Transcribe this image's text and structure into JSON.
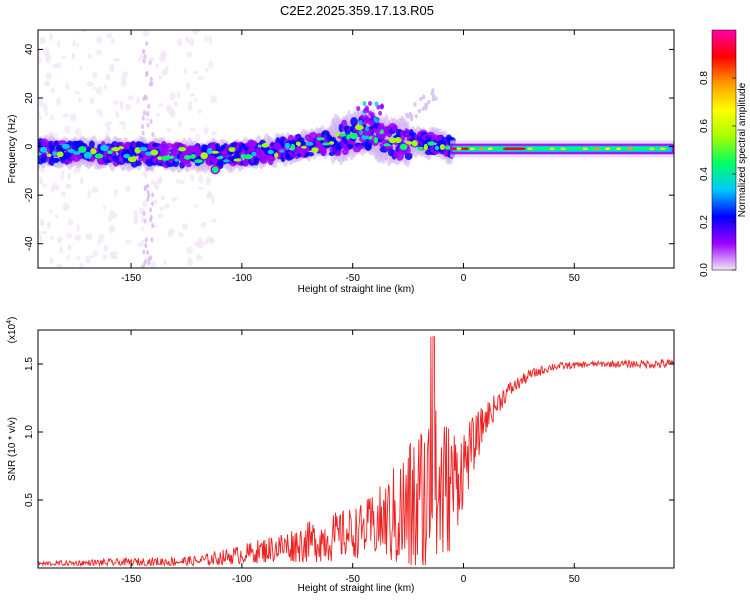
{
  "title": "C2E2.2025.359.17.13.R05",
  "chart_data": [
    {
      "type": "heatmap",
      "title": "C2E2.2025.359.17.13.R05",
      "xlabel": "Height of straight line (km)",
      "ylabel": "Frequency (Hz)",
      "xlim": [
        -192,
        95
      ],
      "ylim": [
        -50,
        48
      ],
      "xticks": [
        -150,
        -100,
        -50,
        0,
        50
      ],
      "yticks": [
        40,
        20,
        0,
        -20,
        -40
      ],
      "band_center": [
        [
          -192,
          -2
        ],
        [
          -150,
          -3
        ],
        [
          -110,
          -4
        ],
        [
          -80,
          -1
        ],
        [
          -60,
          2
        ],
        [
          -45,
          6
        ],
        [
          -30,
          2
        ],
        [
          -10,
          1
        ],
        [
          -5,
          -1
        ],
        [
          95,
          -1
        ]
      ],
      "colorbar": {
        "label": "Normalized spectral amplitude",
        "range": [
          0,
          1
        ],
        "ticks": [
          0.0,
          0.2,
          0.4,
          0.6,
          0.8
        ],
        "tick_labels": [
          "0.0",
          "0.2",
          "0.4",
          "0.6",
          "0.8"
        ],
        "colors": [
          "#f3e6f8",
          "#9b00ff",
          "#0000ff",
          "#00c8ff",
          "#00ff66",
          "#a6ff00",
          "#ffff00",
          "#ff9900",
          "#ff0000",
          "#ff00aa"
        ]
      }
    },
    {
      "type": "line",
      "xlabel": "Height of straight line (km)",
      "ylabel": "SNR (10 * v/v)",
      "multiplier": "(x10",
      "multiplier_exp": "4",
      "multiplier_close": ")",
      "xlim": [
        -192,
        95
      ],
      "ylim": [
        0,
        1.75
      ],
      "xticks": [
        -150,
        -100,
        -50,
        0,
        50
      ],
      "yticks": [
        0.5,
        1.0,
        1.5
      ],
      "ytick_labels": [
        "0.5",
        "1.0",
        "1.5"
      ],
      "series": [
        {
          "name": "SNR",
          "color": "#ee2222",
          "envelope_x": [
            -192,
            -120,
            -100,
            -80,
            -60,
            -45,
            -35,
            -25,
            -20,
            -15,
            -10,
            -5,
            0,
            5,
            10,
            20,
            30,
            40,
            60,
            80,
            95
          ],
          "envelope_base": [
            0.03,
            0.05,
            0.1,
            0.16,
            0.22,
            0.28,
            0.35,
            0.4,
            0.45,
            0.5,
            0.55,
            0.62,
            0.75,
            0.92,
            1.1,
            1.3,
            1.42,
            1.48,
            1.5,
            1.5,
            1.5
          ],
          "envelope_amp": [
            0.02,
            0.04,
            0.07,
            0.12,
            0.18,
            0.2,
            0.3,
            0.55,
            0.65,
            0.75,
            0.6,
            0.45,
            0.3,
            0.2,
            0.12,
            0.06,
            0.04,
            0.03,
            0.02,
            0.03,
            0.04
          ]
        }
      ]
    }
  ]
}
